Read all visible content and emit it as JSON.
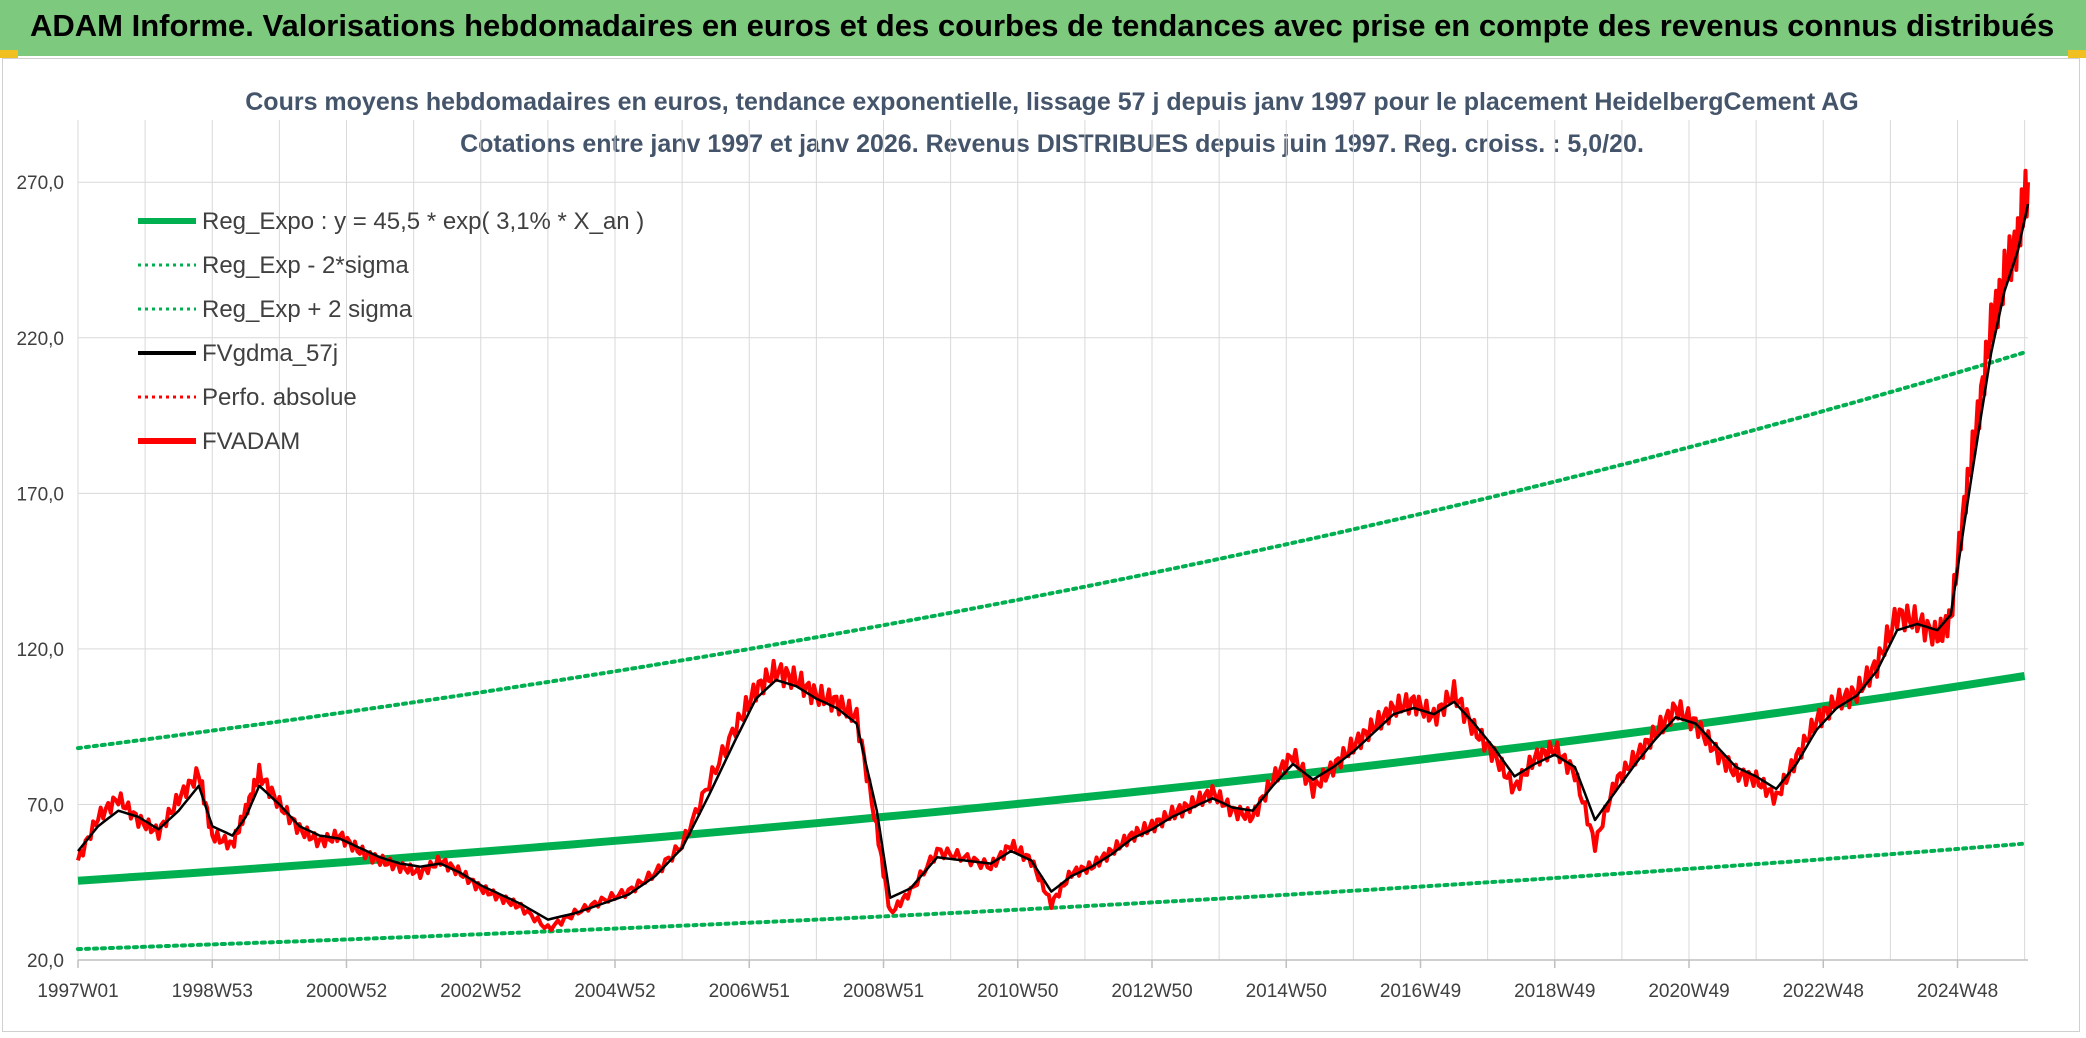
{
  "header": {
    "title": "ADAM Informe. Valorisations hebdomadaires en euros et des courbes de tendances avec prise en compte des revenus connus distribués"
  },
  "colors": {
    "header_bg": "#7dc97d",
    "reg": "#00b050",
    "fvgdma": "#000000",
    "fvadam": "#ff0000",
    "perfo": "#ff0000",
    "grid": "#d9d9d9",
    "title_text": "#44546a"
  },
  "chart_data": {
    "type": "line",
    "title": "Cours moyens hebdomadaires en euros, tendance exponentielle, lissage 57 j depuis janv 1997 pour le placement HeidelbergCement AG",
    "subtitle": "Cotations entre janv 1997 et janv 2026. Revenus DISTRIBUES depuis juin 1997. Reg. croiss. : 5,0/20.",
    "xlabel": "",
    "ylabel": "",
    "x_range_years": [
      1997.0,
      2026.05
    ],
    "ylim": [
      20,
      290
    ],
    "y_ticks": [
      20,
      70,
      120,
      170,
      220,
      270
    ],
    "y_tick_labels": [
      "20,0",
      "70,0",
      "120,0",
      "170,0",
      "220,0",
      "270,0"
    ],
    "x_ticks": [
      {
        "label": "1997W01",
        "year": 1997.0
      },
      {
        "label": "1998W53",
        "year": 1999.0
      },
      {
        "label": "2000W52",
        "year": 2001.0
      },
      {
        "label": "2002W52",
        "year": 2003.0
      },
      {
        "label": "2004W52",
        "year": 2005.0
      },
      {
        "label": "2006W51",
        "year": 2007.0
      },
      {
        "label": "2008W51",
        "year": 2009.0
      },
      {
        "label": "2010W50",
        "year": 2011.0
      },
      {
        "label": "2012W50",
        "year": 2013.0
      },
      {
        "label": "2014W50",
        "year": 2015.0
      },
      {
        "label": "2016W49",
        "year": 2017.0
      },
      {
        "label": "2018W49",
        "year": 2019.0
      },
      {
        "label": "2020W49",
        "year": 2021.0
      },
      {
        "label": "2022W48",
        "year": 2023.0
      },
      {
        "label": "2024W48",
        "year": 2025.0
      }
    ],
    "legend_position": "top-left",
    "legend": [
      {
        "label": "Reg_Expo : y = 45,5 * exp( 3,1% *  X_an )",
        "style": "solid-thick",
        "color": "#00b050"
      },
      {
        "label": "Reg_Exp - 2*sigma",
        "style": "dotted",
        "color": "#00b050"
      },
      {
        "label": "Reg_Exp + 2 sigma",
        "style": "dotted",
        "color": "#00b050"
      },
      {
        "label": "FVgdma_57j",
        "style": "solid",
        "color": "#000000"
      },
      {
        "label": "Perfo. absolue",
        "style": "dotted",
        "color": "#ff0000"
      },
      {
        "label": "FVADAM",
        "style": "solid-thick",
        "color": "#ff0000"
      }
    ],
    "series": [
      {
        "name": "Reg_Expo : y = 45,5 * exp( 3,1% *  X_an )",
        "x": [
          1997,
          2001,
          2005,
          2009,
          2013,
          2017,
          2021,
          2026
        ],
        "values": [
          45.5,
          51.5,
          58.3,
          66.0,
          74.6,
          84.4,
          95.5,
          111.3
        ]
      },
      {
        "name": "Reg_Exp - 2*sigma",
        "x": [
          1997,
          2001,
          2005,
          2009,
          2013,
          2017,
          2021,
          2026
        ],
        "values": [
          23.5,
          26.6,
          30.1,
          34.0,
          38.5,
          43.6,
          49.3,
          57.4
        ]
      },
      {
        "name": "Reg_Exp + 2 sigma",
        "x": [
          1997,
          2001,
          2005,
          2009,
          2013,
          2017,
          2021,
          2026
        ],
        "values": [
          88.1,
          99.7,
          112.8,
          127.6,
          144.4,
          163.4,
          184.8,
          215.3
        ]
      },
      {
        "name": "FVADAM",
        "x": [
          1997.0,
          1997.3,
          1997.6,
          1997.9,
          1998.2,
          1998.5,
          1998.8,
          1999.0,
          1999.3,
          1999.5,
          1999.7,
          2000.0,
          2000.3,
          2000.6,
          2000.9,
          2001.2,
          2001.5,
          2001.8,
          2002.1,
          2002.4,
          2002.7,
          2003.0,
          2003.3,
          2003.6,
          2004.0,
          2004.4,
          2004.8,
          2005.2,
          2005.6,
          2006.0,
          2006.4,
          2006.8,
          2007.1,
          2007.4,
          2007.7,
          2008.0,
          2008.3,
          2008.6,
          2008.9,
          2009.1,
          2009.4,
          2009.8,
          2010.2,
          2010.6,
          2010.9,
          2011.2,
          2011.5,
          2011.8,
          2012.1,
          2012.4,
          2012.7,
          2013.0,
          2013.3,
          2013.6,
          2013.9,
          2014.2,
          2014.5,
          2014.8,
          2015.1,
          2015.4,
          2015.7,
          2016.0,
          2016.3,
          2016.6,
          2016.9,
          2017.2,
          2017.5,
          2017.8,
          2018.1,
          2018.4,
          2018.7,
          2019.0,
          2019.3,
          2019.6,
          2019.9,
          2020.2,
          2020.5,
          2020.8,
          2021.1,
          2021.4,
          2021.7,
          2022.0,
          2022.3,
          2022.6,
          2022.9,
          2023.2,
          2023.5,
          2023.8,
          2024.1,
          2024.4,
          2024.7,
          2024.9,
          2025.1,
          2025.3,
          2025.5,
          2025.7,
          2025.9,
          2026.05
        ],
        "values": [
          52,
          66,
          72,
          65,
          61,
          72,
          80,
          60,
          57,
          68,
          80,
          70,
          62,
          58,
          60,
          55,
          52,
          50,
          48,
          52,
          48,
          43,
          40,
          37,
          30,
          35,
          39,
          42,
          48,
          57,
          77,
          95,
          107,
          113,
          110,
          105,
          103,
          98,
          62,
          35,
          42,
          55,
          53,
          50,
          57,
          52,
          38,
          48,
          50,
          55,
          60,
          63,
          67,
          70,
          74,
          68,
          66,
          78,
          86,
          75,
          82,
          89,
          95,
          101,
          103,
          98,
          106,
          94,
          86,
          75,
          85,
          88,
          80,
          57,
          77,
          85,
          93,
          101,
          96,
          87,
          80,
          78,
          72,
          85,
          97,
          103,
          106,
          115,
          131,
          129,
          124,
          130,
          166,
          194,
          223,
          240,
          252,
          270
        ]
      },
      {
        "name": "FVgdma_57j",
        "x": [
          1997.0,
          1997.3,
          1997.6,
          1997.9,
          1998.2,
          1998.5,
          1998.8,
          1999.0,
          1999.3,
          1999.5,
          1999.7,
          2000.0,
          2000.3,
          2000.6,
          2000.9,
          2001.2,
          2001.5,
          2001.8,
          2002.1,
          2002.4,
          2002.7,
          2003.0,
          2003.3,
          2003.6,
          2004.0,
          2004.4,
          2004.8,
          2005.2,
          2005.6,
          2006.0,
          2006.4,
          2006.8,
          2007.1,
          2007.4,
          2007.7,
          2008.0,
          2008.3,
          2008.6,
          2008.9,
          2009.1,
          2009.4,
          2009.8,
          2010.2,
          2010.6,
          2010.9,
          2011.2,
          2011.5,
          2011.8,
          2012.1,
          2012.4,
          2012.7,
          2013.0,
          2013.3,
          2013.6,
          2013.9,
          2014.2,
          2014.5,
          2014.8,
          2015.1,
          2015.4,
          2015.7,
          2016.0,
          2016.3,
          2016.6,
          2016.9,
          2017.2,
          2017.5,
          2017.8,
          2018.1,
          2018.4,
          2018.7,
          2019.0,
          2019.3,
          2019.6,
          2019.9,
          2020.2,
          2020.5,
          2020.8,
          2021.1,
          2021.4,
          2021.7,
          2022.0,
          2022.3,
          2022.6,
          2022.9,
          2023.2,
          2023.5,
          2023.8,
          2024.1,
          2024.4,
          2024.7,
          2024.9,
          2025.1,
          2025.3,
          2025.5,
          2025.7,
          2025.9,
          2026.05
        ],
        "values": [
          55,
          63,
          68,
          66,
          62,
          68,
          76,
          63,
          60,
          66,
          76,
          70,
          63,
          60,
          59,
          56,
          53,
          51,
          50,
          51,
          48,
          44,
          41,
          38,
          33,
          35,
          38,
          41,
          47,
          56,
          73,
          91,
          104,
          110,
          108,
          104,
          101,
          96,
          68,
          40,
          43,
          53,
          52,
          51,
          55,
          52,
          42,
          47,
          50,
          54,
          59,
          62,
          66,
          69,
          72,
          69,
          68,
          76,
          83,
          78,
          82,
          87,
          93,
          99,
          101,
          99,
          103,
          96,
          88,
          79,
          83,
          86,
          82,
          65,
          74,
          83,
          91,
          98,
          96,
          89,
          82,
          79,
          75,
          83,
          94,
          101,
          105,
          113,
          126,
          128,
          126,
          131,
          160,
          188,
          215,
          235,
          248,
          263
        ]
      }
    ]
  }
}
